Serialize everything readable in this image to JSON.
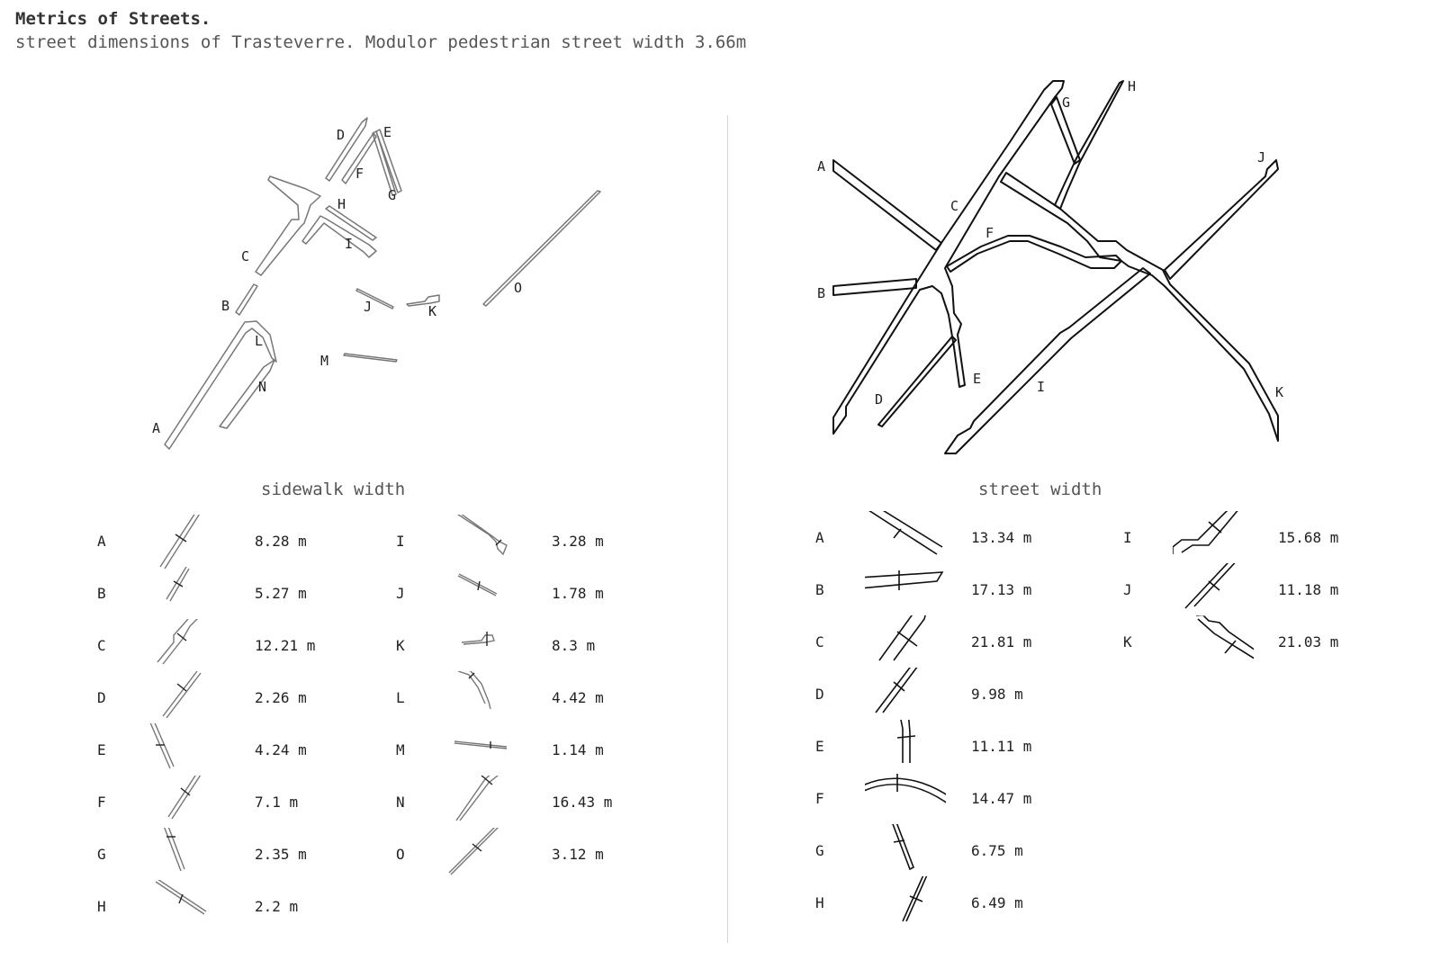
{
  "title": "Metrics of Streets.",
  "subtitle": "street dimensions of Trasteverre. Modulor pedestrian street width 3.66m",
  "sidewalk": {
    "heading": "sidewalk width",
    "map_labels": [
      "A",
      "B",
      "C",
      "D",
      "E",
      "F",
      "G",
      "H",
      "I",
      "J",
      "K",
      "L",
      "M",
      "N",
      "O"
    ],
    "rows": [
      {
        "letter": "A",
        "value": "8.28 m"
      },
      {
        "letter": "B",
        "value": "5.27 m"
      },
      {
        "letter": "C",
        "value": "12.21 m"
      },
      {
        "letter": "D",
        "value": "2.26 m"
      },
      {
        "letter": "E",
        "value": "4.24 m"
      },
      {
        "letter": "F",
        "value": "7.1 m"
      },
      {
        "letter": "G",
        "value": "2.35 m"
      },
      {
        "letter": "H",
        "value": "2.2 m"
      },
      {
        "letter": "I",
        "value": "3.28 m"
      },
      {
        "letter": "J",
        "value": "1.78 m"
      },
      {
        "letter": "K",
        "value": "8.3 m"
      },
      {
        "letter": "L",
        "value": "4.42 m"
      },
      {
        "letter": "M",
        "value": "1.14 m"
      },
      {
        "letter": "N",
        "value": "16.43 m"
      },
      {
        "letter": "O",
        "value": "3.12 m"
      }
    ]
  },
  "street": {
    "heading": "street width",
    "map_labels": [
      "A",
      "B",
      "C",
      "D",
      "E",
      "F",
      "G",
      "H",
      "I",
      "J",
      "K"
    ],
    "rows": [
      {
        "letter": "A",
        "value": "13.34 m"
      },
      {
        "letter": "B",
        "value": "17.13 m"
      },
      {
        "letter": "C",
        "value": "21.81 m"
      },
      {
        "letter": "D",
        "value": "9.98 m"
      },
      {
        "letter": "E",
        "value": "11.11 m"
      },
      {
        "letter": "F",
        "value": "14.47 m"
      },
      {
        "letter": "G",
        "value": "6.75 m"
      },
      {
        "letter": "H",
        "value": "6.49 m"
      },
      {
        "letter": "I",
        "value": "15.68 m"
      },
      {
        "letter": "J",
        "value": "11.18 m"
      },
      {
        "letter": "K",
        "value": "21.03 m"
      }
    ]
  },
  "colors": {
    "sidewalk_stroke": "#777777",
    "street_stroke": "#111111",
    "divider": "#d4d4d4"
  }
}
